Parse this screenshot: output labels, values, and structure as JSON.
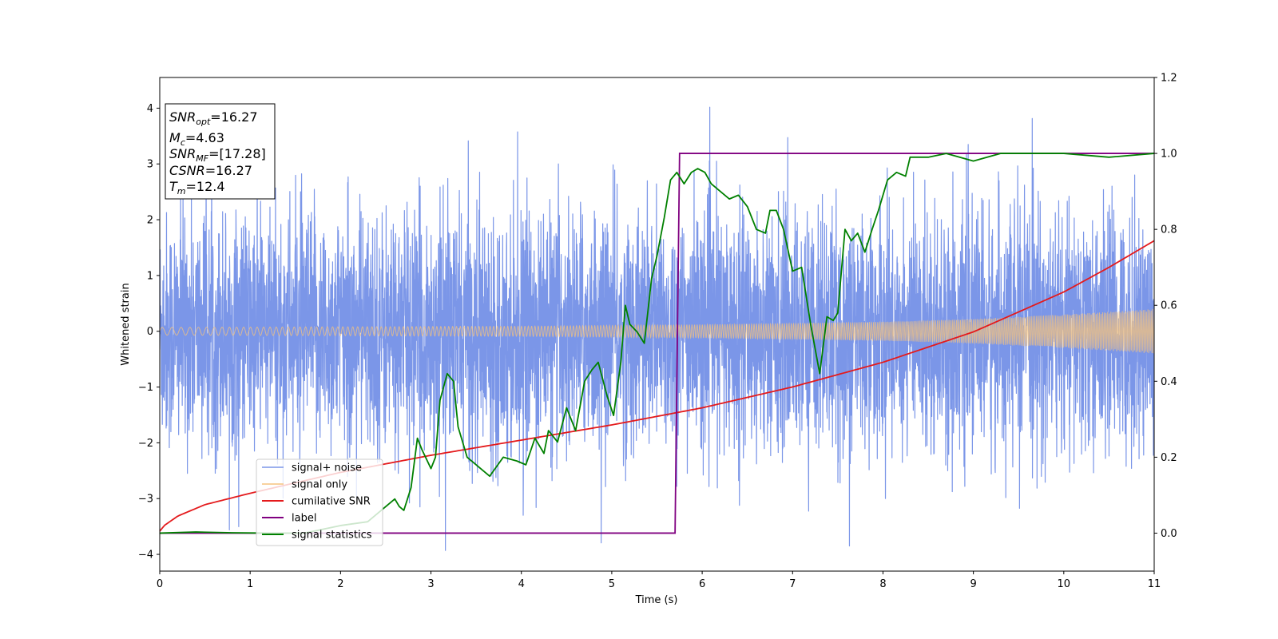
{
  "chart_data": {
    "type": "line",
    "xlabel": "Time (s)",
    "ylabel": "Whitened strain",
    "xlim": [
      0,
      11
    ],
    "ylim": [
      -4.3,
      4.55
    ],
    "y2lim": [
      -0.1,
      1.2
    ],
    "x_ticks": [
      "0",
      "1",
      "2",
      "3",
      "4",
      "5",
      "6",
      "7",
      "8",
      "9",
      "10",
      "11"
    ],
    "y_ticks": [
      "4",
      "3",
      "2",
      "1",
      "0",
      "−1",
      "−2",
      "−3",
      "−4"
    ],
    "y2_ticks": [
      "1.2",
      "1.0",
      "0.8",
      "0.6",
      "0.4",
      "0.2",
      "0.0"
    ],
    "grid": false,
    "legend_position": "lower-left",
    "info_box": {
      "snr_opt": {
        "base": "SNR",
        "sub": "opt",
        "value": "=16.27"
      },
      "mc": {
        "base": "M",
        "sub": "c",
        "value": "=4.63"
      },
      "snr_mf": {
        "base": "SNR",
        "sub": "MF",
        "value": "=[17.28]"
      },
      "csnr": {
        "base": "CSNR",
        "value": "=16.27"
      },
      "tm": {
        "base": "T",
        "sub": "m",
        "value": "=12.4"
      }
    },
    "series": [
      {
        "name": "signal+ noise",
        "color": "#7b96e8",
        "axis": "left",
        "description_values": "dense white-noise trace",
        "std": 1.0,
        "spike_max": 4.17,
        "spike_min": -3.93
      },
      {
        "name": "signal only",
        "color": "#f5c37e",
        "axis": "left",
        "envelope": {
          "x": [
            0,
            2,
            4,
            6,
            8,
            9,
            10,
            11
          ],
          "amp": [
            0.07,
            0.08,
            0.09,
            0.12,
            0.17,
            0.22,
            0.3,
            0.4
          ]
        }
      },
      {
        "name": "cumilative SNR",
        "color": "#e41a1c",
        "axis": "right",
        "x": [
          0,
          0.05,
          0.2,
          0.5,
          1,
          2,
          3,
          4,
          5,
          6,
          7,
          8,
          9,
          10,
          10.5,
          11
        ],
        "y": [
          0.005,
          0.02,
          0.045,
          0.075,
          0.105,
          0.16,
          0.205,
          0.245,
          0.285,
          0.33,
          0.385,
          0.45,
          0.53,
          0.635,
          0.7,
          0.77
        ]
      },
      {
        "name": "label",
        "color": "#800080",
        "axis": "right",
        "x": [
          0,
          5.7,
          5.75,
          11
        ],
        "y": [
          0,
          0,
          1,
          1
        ]
      },
      {
        "name": "signal statistics",
        "color": "#008000",
        "axis": "right",
        "x": [
          0,
          0.4,
          0.8,
          1.2,
          1.6,
          2.0,
          2.3,
          2.5,
          2.6,
          2.65,
          2.7,
          2.78,
          2.85,
          2.9,
          3.0,
          3.05,
          3.1,
          3.18,
          3.25,
          3.3,
          3.4,
          3.5,
          3.65,
          3.8,
          3.95,
          4.05,
          4.15,
          4.25,
          4.3,
          4.4,
          4.5,
          4.6,
          4.7,
          4.78,
          4.85,
          4.95,
          5.02,
          5.1,
          5.15,
          5.2,
          5.28,
          5.36,
          5.44,
          5.5,
          5.58,
          5.65,
          5.72,
          5.8,
          5.88,
          5.95,
          6.03,
          6.1,
          6.2,
          6.3,
          6.4,
          6.5,
          6.6,
          6.7,
          6.75,
          6.82,
          6.9,
          7.0,
          7.1,
          7.2,
          7.3,
          7.38,
          7.45,
          7.5,
          7.58,
          7.65,
          7.72,
          7.8,
          7.88,
          7.95,
          8.05,
          8.15,
          8.25,
          8.3,
          8.4,
          8.5,
          8.7,
          9.0,
          9.3,
          9.6,
          10.0,
          10.5,
          11.0
        ],
        "y": [
          0,
          0.003,
          0.001,
          0.0,
          0.0,
          0.02,
          0.03,
          0.07,
          0.09,
          0.07,
          0.06,
          0.12,
          0.25,
          0.22,
          0.17,
          0.2,
          0.35,
          0.42,
          0.4,
          0.28,
          0.2,
          0.18,
          0.15,
          0.2,
          0.19,
          0.18,
          0.25,
          0.21,
          0.27,
          0.24,
          0.33,
          0.27,
          0.4,
          0.43,
          0.45,
          0.36,
          0.31,
          0.45,
          0.6,
          0.55,
          0.53,
          0.5,
          0.67,
          0.73,
          0.83,
          0.93,
          0.95,
          0.92,
          0.95,
          0.96,
          0.95,
          0.92,
          0.9,
          0.88,
          0.89,
          0.86,
          0.8,
          0.79,
          0.85,
          0.85,
          0.8,
          0.69,
          0.7,
          0.55,
          0.42,
          0.57,
          0.56,
          0.58,
          0.8,
          0.77,
          0.79,
          0.74,
          0.8,
          0.85,
          0.93,
          0.95,
          0.94,
          0.99,
          0.99,
          0.99,
          1.0,
          0.98,
          1.0,
          1.0,
          1.0,
          0.99,
          1.0
        ]
      }
    ]
  }
}
